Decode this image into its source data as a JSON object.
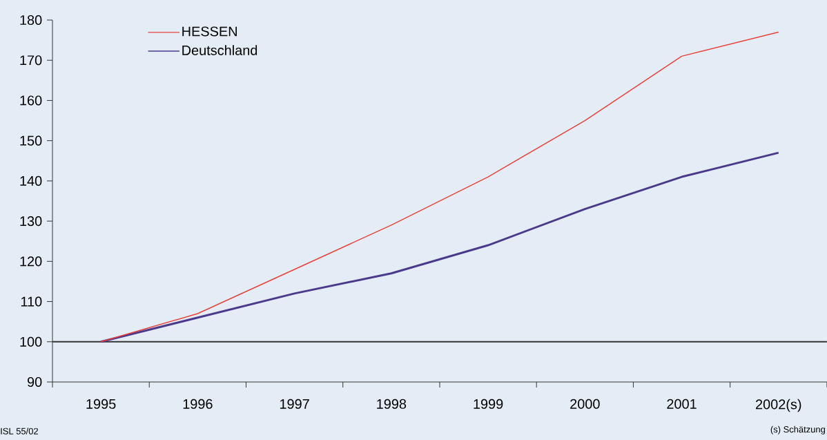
{
  "chart_data": {
    "type": "line",
    "categories": [
      "1995",
      "1996",
      "1997",
      "1998",
      "1999",
      "2000",
      "2001",
      "2002(s)"
    ],
    "series": [
      {
        "name": "HESSEN",
        "color": "#e8403a",
        "values": [
          100,
          107,
          118,
          129,
          141,
          155,
          171,
          177
        ]
      },
      {
        "name": "Deutschland",
        "color": "#4b3a8c",
        "values": [
          100,
          106,
          112,
          117,
          124,
          133,
          141,
          147
        ]
      }
    ],
    "ylim": [
      90,
      180
    ],
    "yticks": [
      90,
      100,
      110,
      120,
      130,
      140,
      150,
      160,
      170,
      180
    ],
    "ref_lines": [
      {
        "axis": "y",
        "value": 100,
        "color": "#333333"
      }
    ],
    "legend": "top left",
    "grid": false,
    "marker": "none",
    "line_style": "solid",
    "annotations": [
      "ISL 55/02",
      "(s) Schätzung"
    ]
  }
}
